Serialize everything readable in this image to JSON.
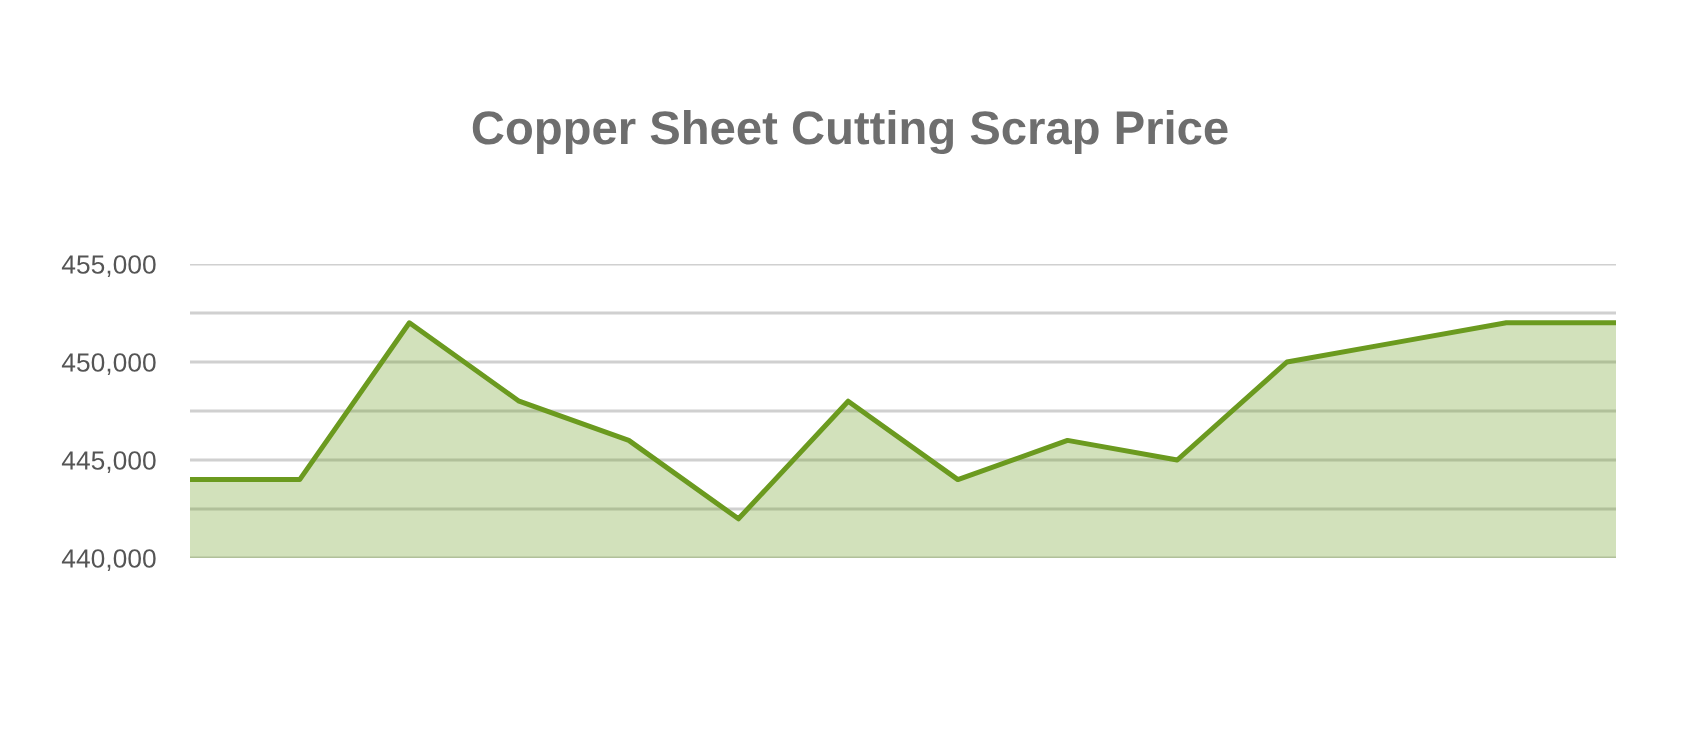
{
  "chart_data": {
    "type": "area",
    "title": "Copper Sheet Cutting Scrap Price",
    "categories": [
      null,
      null,
      null,
      null,
      null,
      null,
      null,
      null,
      null,
      null,
      null,
      null,
      null,
      null
    ],
    "series": [
      {
        "color": "#6b9a1f",
        "values": [
          444000,
          444000,
          452000,
          448000,
          446000,
          442000,
          448000,
          444000,
          446000,
          445000,
          450000,
          451000,
          452000,
          452000
        ]
      }
    ],
    "ylim": [
      440000,
      455000
    ],
    "yticks": [
      {
        "value": 440000,
        "label": "440,000"
      },
      {
        "value": 442500,
        "label": null
      },
      {
        "value": 445000,
        "label": "445,000"
      },
      {
        "value": 447500,
        "label": null
      },
      {
        "value": 450000,
        "label": "450,000"
      },
      {
        "value": 452500,
        "label": null
      },
      {
        "value": 455000,
        "label": "455,000"
      }
    ],
    "grid": "y",
    "tick_labels": "y",
    "marker": "none",
    "line_style": "solid",
    "legend": false
  }
}
